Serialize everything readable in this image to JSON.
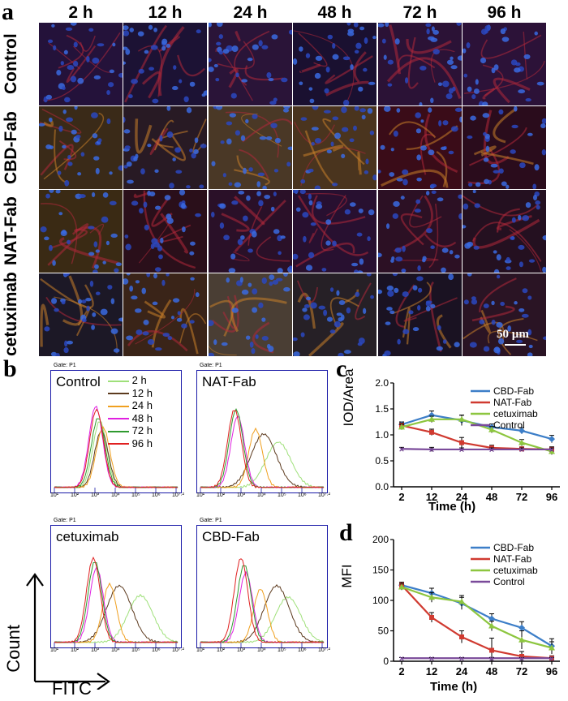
{
  "panel_letters": {
    "a": "a",
    "b": "b",
    "c": "c",
    "d": "d"
  },
  "micrograph": {
    "time_points": [
      "2 h",
      "12 h",
      "24 h",
      "48 h",
      "72 h",
      "96 h"
    ],
    "groups": [
      "Control",
      "CBD-Fab",
      "NAT-Fab",
      "cetuximab"
    ],
    "scale_bar": "50 µm"
  },
  "flow": {
    "gate": "Gate: P1",
    "panels": [
      "Control",
      "NAT-Fab",
      "cetuximab",
      "CBD-Fab"
    ],
    "legend": [
      {
        "label": "2 h",
        "color": "#9fe07a"
      },
      {
        "label": "12 h",
        "color": "#5c3a1e"
      },
      {
        "label": "24 h",
        "color": "#f0a020"
      },
      {
        "label": "48 h",
        "color": "#e020e0"
      },
      {
        "label": "72 h",
        "color": "#2f9a2f"
      },
      {
        "label": "96 h",
        "color": "#e02020"
      }
    ],
    "x_axis_label": "FITC",
    "y_axis_label": "Count",
    "ticks": [
      "10¹",
      "10²",
      "10³",
      "10⁴",
      "10⁵",
      "10⁶",
      "10⁷·²"
    ]
  },
  "chart_data": [
    {
      "type": "line",
      "panel": "c",
      "xlabel": "Time (h)",
      "ylabel": "IOD/Area",
      "categories": [
        "2",
        "12",
        "24",
        "48",
        "72",
        "96"
      ],
      "yticks": [
        "0.0",
        "0.5",
        "1.0",
        "1.5",
        "2.0"
      ],
      "ylim": [
        0,
        2.0
      ],
      "series": [
        {
          "name": "CBD-Fab",
          "color": "#3c7ec8",
          "values": [
            1.2,
            1.38,
            1.28,
            1.15,
            1.08,
            0.92
          ],
          "errors": [
            0.05,
            0.08,
            0.1,
            0.06,
            0.06,
            0.07
          ]
        },
        {
          "name": "NAT-Fab",
          "color": "#d03a30",
          "values": [
            1.18,
            1.05,
            0.85,
            0.75,
            0.73,
            0.72
          ],
          "errors": [
            0.05,
            0.06,
            0.1,
            0.05,
            0.04,
            0.05
          ]
        },
        {
          "name": "cetuximab",
          "color": "#8dc63f",
          "values": [
            1.15,
            1.3,
            1.3,
            1.1,
            0.85,
            0.68
          ],
          "errors": [
            0.05,
            0.06,
            0.08,
            0.06,
            0.06,
            0.06
          ]
        },
        {
          "name": "Control",
          "color": "#7a4a9a",
          "values": [
            0.73,
            0.72,
            0.72,
            0.72,
            0.72,
            0.72
          ],
          "errors": [
            0.03,
            0.04,
            0.03,
            0.03,
            0.03,
            0.03
          ]
        }
      ]
    },
    {
      "type": "line",
      "panel": "d",
      "xlabel": "Time (h)",
      "ylabel": "MFI",
      "categories": [
        "2",
        "12",
        "24",
        "48",
        "72",
        "96"
      ],
      "yticks": [
        "0",
        "50",
        "100",
        "150",
        "200"
      ],
      "ylim": [
        0,
        200
      ],
      "series": [
        {
          "name": "CBD-Fab",
          "color": "#3c7ec8",
          "values": [
            125,
            112,
            95,
            70,
            55,
            25
          ],
          "errors": [
            5,
            8,
            10,
            8,
            10,
            12
          ]
        },
        {
          "name": "NAT-Fab",
          "color": "#d03a30",
          "values": [
            125,
            72,
            40,
            18,
            8,
            5
          ],
          "errors": [
            5,
            8,
            10,
            20,
            8,
            4
          ]
        },
        {
          "name": "cetuximab",
          "color": "#8dc63f",
          "values": [
            122,
            105,
            98,
            58,
            35,
            22
          ],
          "errors": [
            5,
            8,
            10,
            8,
            15,
            10
          ]
        },
        {
          "name": "Control",
          "color": "#7a4a9a",
          "values": [
            5,
            5,
            5,
            5,
            5,
            5
          ],
          "errors": [
            1,
            1,
            1,
            1,
            1,
            1
          ]
        }
      ]
    }
  ]
}
